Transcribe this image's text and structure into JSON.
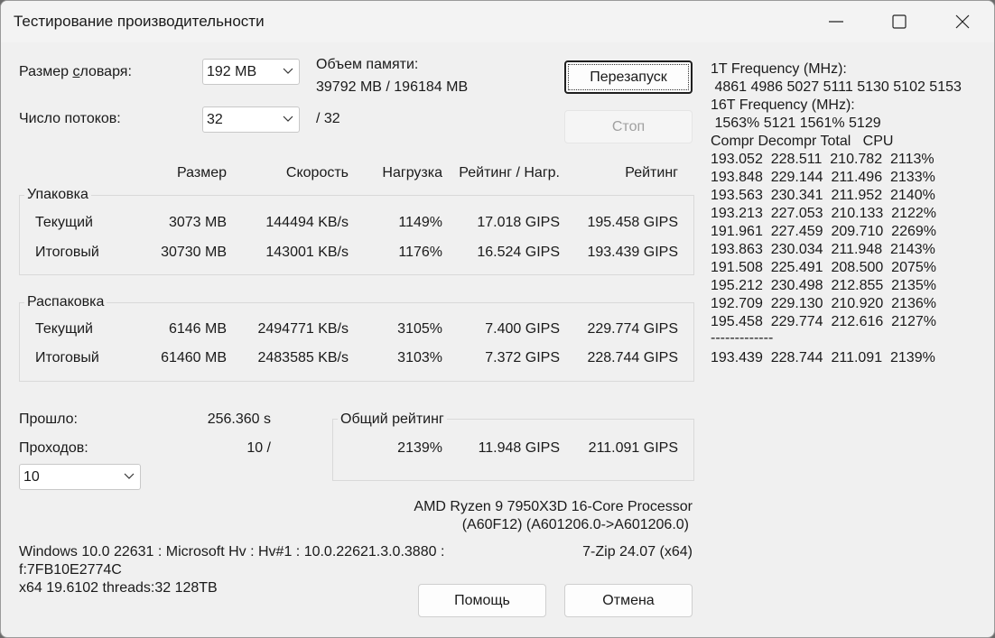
{
  "window": {
    "title": "Тестирование производительности"
  },
  "settings": {
    "dict_label_pre": "Размер ",
    "dict_label_ul": "с",
    "dict_label_post": "ловаря:",
    "dict_value": "192 MB",
    "threads_label": "Число потоков:",
    "threads_value": "32",
    "threads_max": "/ 32",
    "memory_label": "Объем памяти:",
    "memory_value": "39792 MB / 196184 MB"
  },
  "buttons": {
    "restart": "Перезапуск",
    "stop": "Стоп",
    "help": "Помощь",
    "cancel": "Отмена"
  },
  "columns": [
    "Размер",
    "Скорость",
    "Нагрузка",
    "Рейтинг / Нагр.",
    "Рейтинг"
  ],
  "compress": {
    "title": "Упаковка",
    "rows": [
      {
        "label": "Текущий",
        "size": "3073 MB",
        "speed": "144494 KB/s",
        "usage": "1149%",
        "rpu": "17.018 GIPS",
        "rating": "195.458 GIPS"
      },
      {
        "label": "Итоговый",
        "size": "30730 MB",
        "speed": "143001 KB/s",
        "usage": "1176%",
        "rpu": "16.524 GIPS",
        "rating": "193.439 GIPS"
      }
    ]
  },
  "decompress": {
    "title": "Распаковка",
    "rows": [
      {
        "label": "Текущий",
        "size": "6146 MB",
        "speed": "2494771 KB/s",
        "usage": "3105%",
        "rpu": "7.400 GIPS",
        "rating": "229.774 GIPS"
      },
      {
        "label": "Итоговый",
        "size": "61460 MB",
        "speed": "2483585 KB/s",
        "usage": "3103%",
        "rpu": "7.372 GIPS",
        "rating": "228.744 GIPS"
      }
    ]
  },
  "elapsed": {
    "label": "Прошло:",
    "value": "256.360 s"
  },
  "passes": {
    "label": "Проходов:",
    "value": "10 /",
    "combo_value": "10"
  },
  "total": {
    "title": "Общий рейтинг",
    "usage": "2139%",
    "rpu": "11.948 GIPS",
    "rating": "211.091 GIPS"
  },
  "cpu": {
    "line1": "AMD Ryzen 9 7950X3D 16-Core Processor",
    "line2": "(A60F12) (A601206.0->A601206.0)"
  },
  "version": "7-Zip 24.07 (x64)",
  "sysinfo": {
    "line1": "Windows 10.0 22631 : Microsoft Hv : Hv#1 : 10.0.22621.3.0.3880 :",
    "line2": "f:7FB10E2774C",
    "line3": "x64 19.6102 threads:32 128TB"
  },
  "freq": {
    "t1_label": "1T Frequency (MHz):",
    "t1_values": " 4861 4986 5027 5111 5130 5102 5153",
    "t16_label": "16T Frequency (MHz):",
    "t16_values": " 1563% 5121 1561% 5129",
    "header": "Compr Decompr Total   CPU",
    "rows": [
      "193.052  228.511  210.782  2113%",
      "193.848  229.144  211.496  2133%",
      "193.563  230.341  211.952  2140%",
      "193.213  227.053  210.133  2122%",
      "191.961  227.459  209.710  2269%",
      "193.863  230.034  211.948  2143%",
      "191.508  225.491  208.500  2075%",
      "195.212  230.498  212.855  2135%",
      "192.709  229.130  210.920  2136%",
      "195.458  229.774  212.616  2127%"
    ],
    "separator": "-------------",
    "summary": "193.439  228.744  211.091  2139%"
  },
  "icons": {
    "minimize": "minimize-icon",
    "maximize": "maximize-icon",
    "close": "close-icon",
    "dropdown": "chevron-down-icon"
  }
}
